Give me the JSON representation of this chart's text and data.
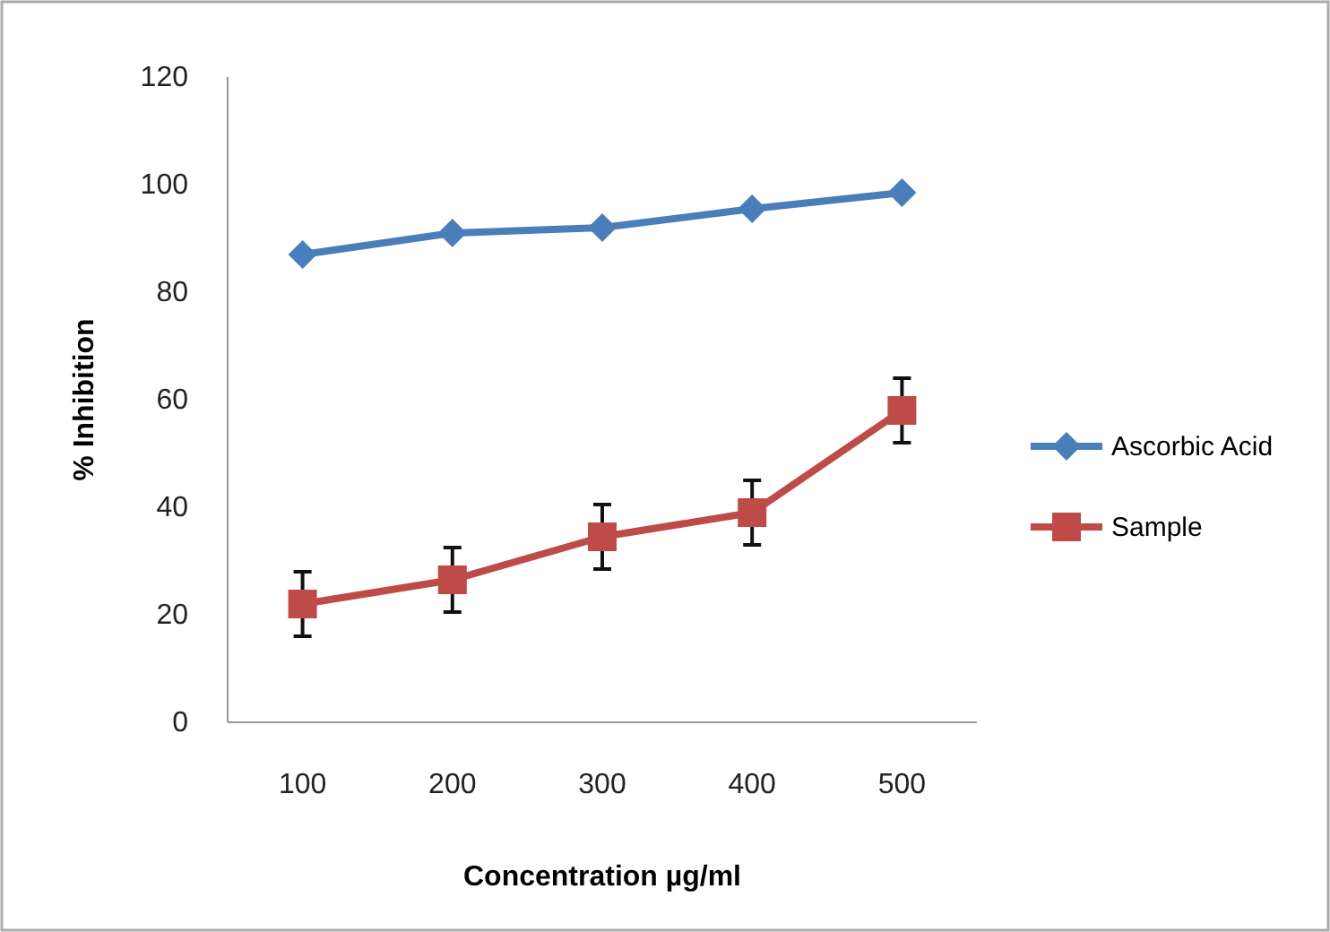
{
  "chart_data": {
    "type": "line",
    "xlabel": "Concentration µg/ml",
    "ylabel": "% Inhibition",
    "categories": [
      "100",
      "200",
      "300",
      "400",
      "500"
    ],
    "series": [
      {
        "name": "Ascorbic Acid",
        "color": "#4a7ebb",
        "marker": "diamond",
        "values": [
          87,
          91,
          92,
          95.5,
          98.5
        ]
      },
      {
        "name": "Sample",
        "color": "#be4b48",
        "marker": "square",
        "values": [
          22,
          26.5,
          34.5,
          39,
          58
        ],
        "errors": [
          6,
          6,
          6,
          6,
          6
        ]
      }
    ],
    "ylim": [
      0,
      120
    ],
    "yticks": [
      0,
      20,
      40,
      60,
      80,
      100,
      120
    ],
    "grid": false,
    "legend": "right"
  }
}
